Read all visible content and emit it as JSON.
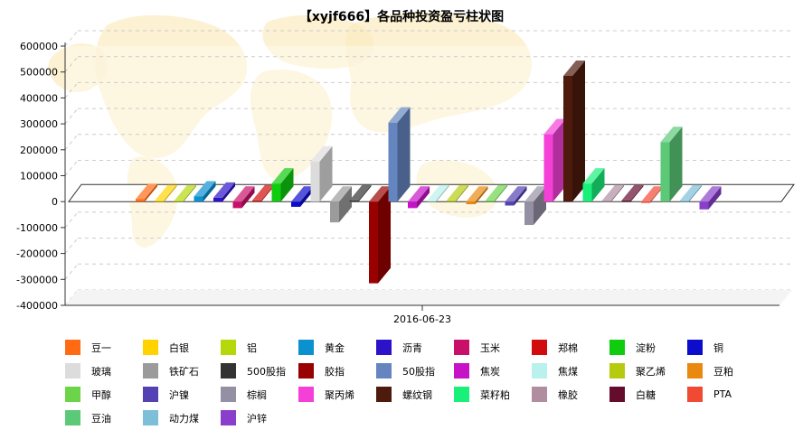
{
  "chart_data": {
    "type": "bar",
    "title": "【xyjf666】各品种投资盈亏柱状图",
    "categories": [
      "2016-06-23"
    ],
    "ylim": [
      -400000,
      600000
    ],
    "yticks": [
      "600000",
      "500000",
      "400000",
      "300000",
      "200000",
      "100000",
      "0",
      "-100000",
      "-200000",
      "-300000",
      "-400000"
    ],
    "grid": true,
    "legend_position": "bottom",
    "series": [
      {
        "name": "豆一",
        "color": "#ff6a13",
        "values": [
          10000
        ]
      },
      {
        "name": "白银",
        "color": "#ffd200",
        "values": [
          5000
        ]
      },
      {
        "name": "铝",
        "color": "#b5d80c",
        "values": [
          5000
        ]
      },
      {
        "name": "黄金",
        "color": "#0b90d0",
        "values": [
          20000
        ]
      },
      {
        "name": "沥青",
        "color": "#2c12c8",
        "values": [
          15000
        ]
      },
      {
        "name": "玉米",
        "color": "#c81069",
        "values": [
          -25000
        ]
      },
      {
        "name": "郑棉",
        "color": "#d10c0c",
        "values": [
          5000
        ]
      },
      {
        "name": "淀粉",
        "color": "#0fcc0f",
        "values": [
          70000
        ]
      },
      {
        "name": "铜",
        "color": "#0c0ccc",
        "values": [
          -20000
        ]
      },
      {
        "name": "玻璃",
        "color": "#dcdcdc",
        "values": [
          155000
        ]
      },
      {
        "name": "铁矿石",
        "color": "#9b9b9b",
        "values": [
          -80000
        ]
      },
      {
        "name": "500股指",
        "color": "#333333",
        "values": [
          5000
        ]
      },
      {
        "name": "胶指",
        "color": "#990000",
        "values": [
          -315000
        ]
      },
      {
        "name": "50股指",
        "color": "#6485bf",
        "values": [
          305000
        ]
      },
      {
        "name": "焦炭",
        "color": "#c613c8",
        "values": [
          -25000
        ]
      },
      {
        "name": "焦煤",
        "color": "#b9f1ec",
        "values": [
          5000
        ]
      },
      {
        "name": "聚乙烯",
        "color": "#b6cb10",
        "values": [
          5000
        ]
      },
      {
        "name": "豆粕",
        "color": "#e9890f",
        "values": [
          -10000
        ]
      },
      {
        "name": "甲醇",
        "color": "#6cd449",
        "values": [
          5000
        ]
      },
      {
        "name": "沪镍",
        "color": "#5441b4",
        "values": [
          -15000
        ]
      },
      {
        "name": "棕榈",
        "color": "#958fa4",
        "values": [
          -90000
        ]
      },
      {
        "name": "聚丙烯",
        "color": "#f540d8",
        "values": [
          260000
        ]
      },
      {
        "name": "螺纹钢",
        "color": "#4e1a0c",
        "values": [
          485000
        ]
      },
      {
        "name": "菜籽粕",
        "color": "#19f07a",
        "values": [
          70000
        ]
      },
      {
        "name": "橡胶",
        "color": "#b18da0",
        "values": [
          5000
        ]
      },
      {
        "name": "白糖",
        "color": "#650b2e",
        "values": [
          5000
        ]
      },
      {
        "name": "PTA",
        "color": "#f04a34",
        "values": [
          -5000
        ]
      },
      {
        "name": "豆油",
        "color": "#5bc978",
        "values": [
          230000
        ]
      },
      {
        "name": "动力煤",
        "color": "#7dbfd8",
        "values": [
          5000
        ]
      },
      {
        "name": "沪锌",
        "color": "#8a3fcc",
        "values": [
          -30000
        ]
      }
    ]
  }
}
